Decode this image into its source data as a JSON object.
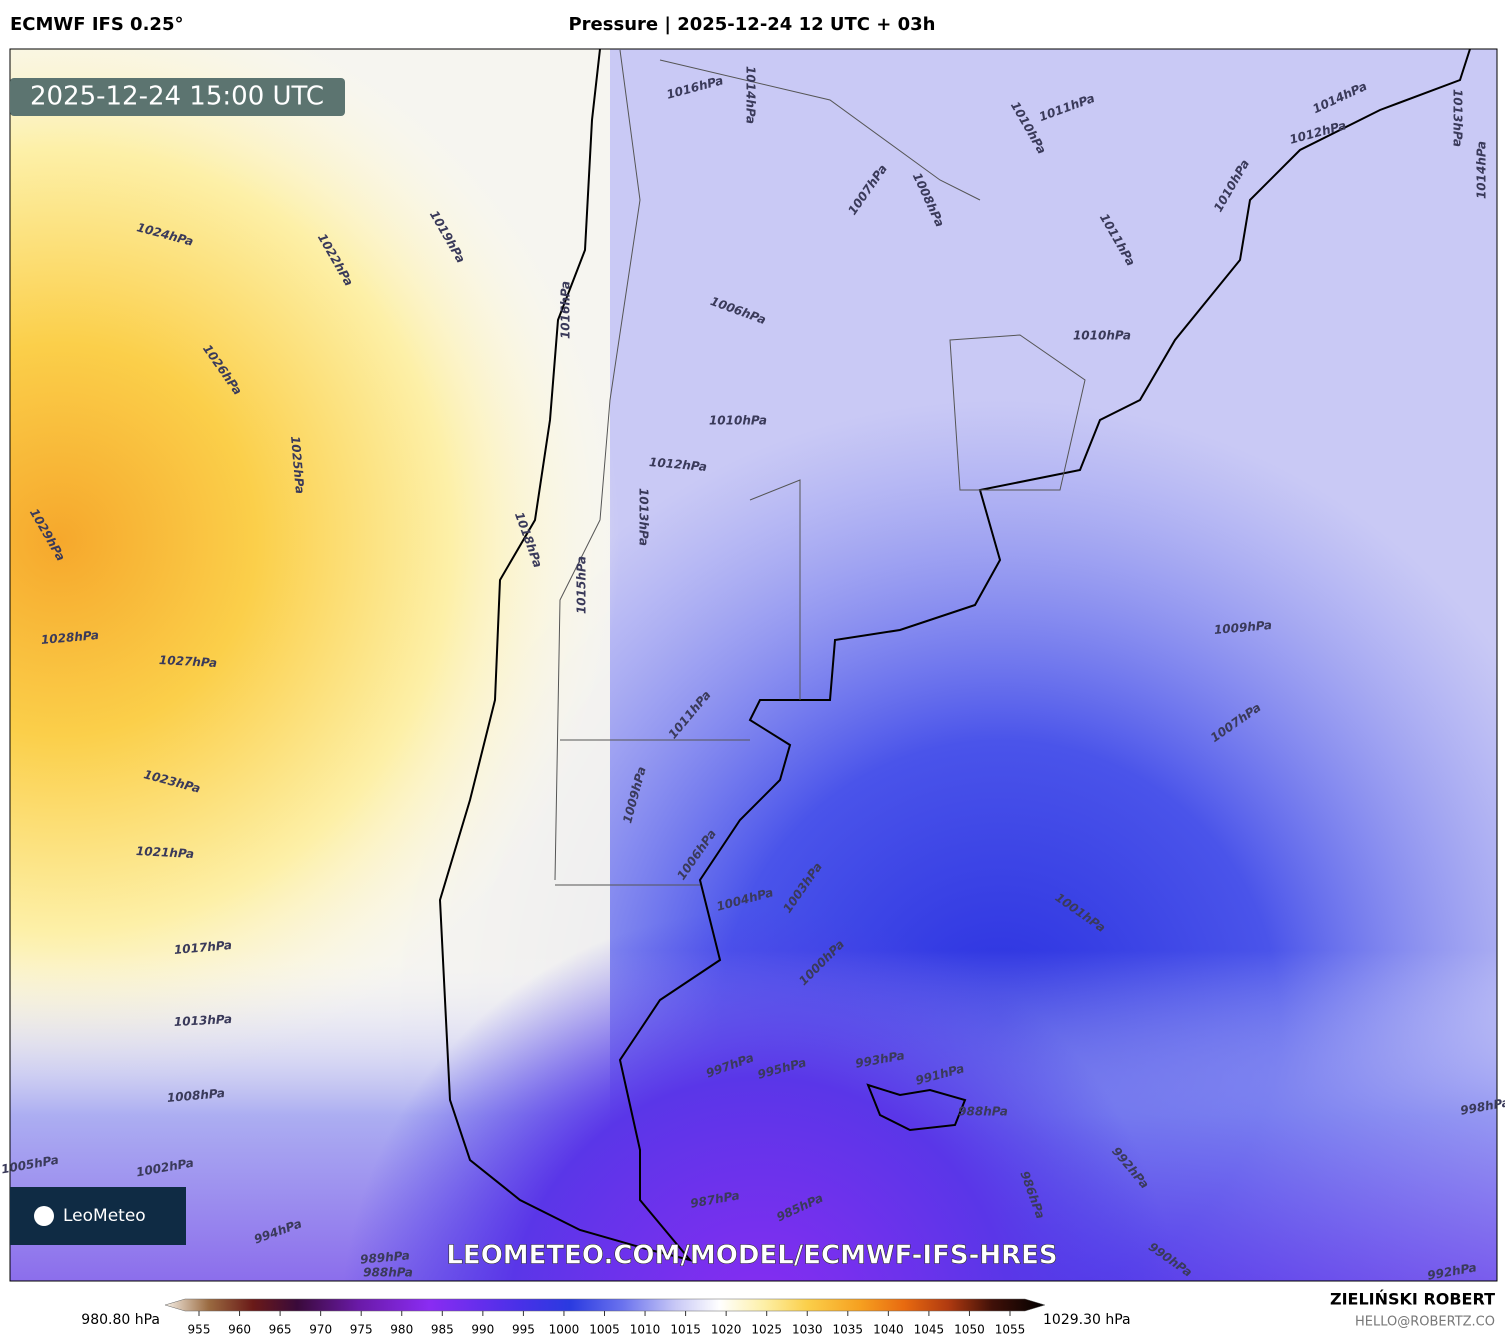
{
  "header": {
    "model": "ECMWF IFS 0.25°",
    "title": "Pressure | 2025-12-24 12 UTC + 03h"
  },
  "valid_time": "2025-12-24 15:00 UTC",
  "isobar_labels": [
    "1024hPa",
    "1022hPa",
    "1019hPa",
    "1026hPa",
    "1025hPa",
    "1029hPa",
    "1028hPa",
    "1027hPa",
    "1023hPa",
    "1021hPa",
    "1017hPa",
    "1013hPa",
    "1008hPa",
    "1005hPa",
    "1002hPa",
    "994hPa",
    "989hPa",
    "988hPa",
    "1016hPa",
    "1014hPa",
    "1011hPa",
    "1010hPa",
    "1007hPa",
    "1008hPa",
    "1012hPa",
    "1014hPa",
    "1010hPa",
    "1013hPa",
    "1014hPa",
    "1011hPa",
    "1006hPa",
    "1010hPa",
    "1010hPa",
    "1012hPa",
    "1013hPa",
    "1015hPa",
    "1016hPa",
    "1018hPa",
    "1009hPa",
    "1007hPa",
    "1011hPa",
    "1009hPa",
    "1006hPa",
    "1004hPa",
    "1003hPa",
    "1001hPa",
    "1000hPa",
    "997hPa",
    "995hPa",
    "993hPa",
    "991hPa",
    "988hPa",
    "992hPa",
    "986hPa",
    "987hPa",
    "985hPa",
    "990hPa",
    "992hPa",
    "998hPa"
  ],
  "watermark": "LEOMETEO.COM/MODEL/ECMWF-IFS-HRES",
  "logo": "LeoMeteo",
  "colorbar": {
    "min_label": "980.80 hPa",
    "max_label": "1029.30 hPa",
    "ticks": [
      955,
      960,
      965,
      970,
      975,
      980,
      985,
      990,
      995,
      1000,
      1005,
      1010,
      1015,
      1020,
      1025,
      1030,
      1035,
      1040,
      1045,
      1050,
      1055
    ]
  },
  "credit": {
    "name": "ZIELIŃSKI ROBERT",
    "email": "HELLO@ROBERTZ.CO"
  }
}
